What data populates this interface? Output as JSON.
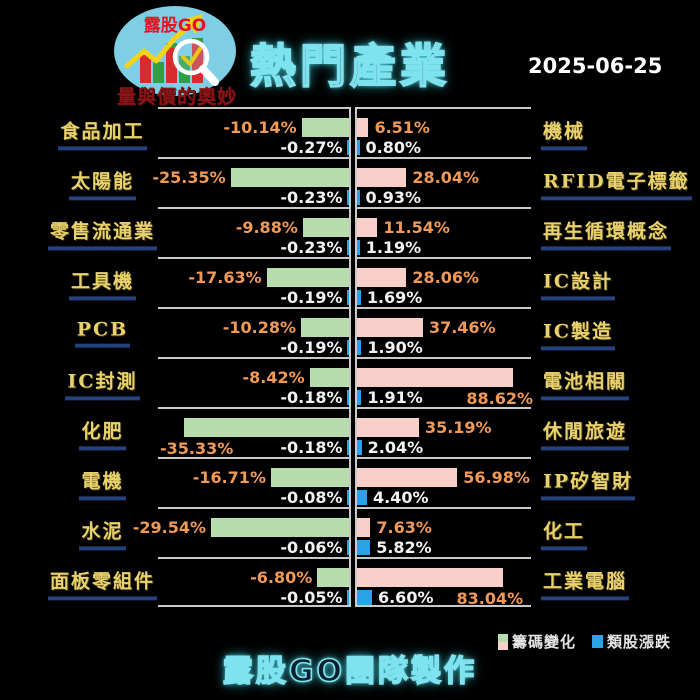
{
  "header": {
    "logo": {
      "brand": "露股GO",
      "tagline": "量與價的奧妙"
    },
    "title": "熱門產業",
    "date": "2025-06-25"
  },
  "footer": {
    "credit": "露股GO團隊製作"
  },
  "colors": {
    "background": "#000000",
    "chip_negative_bar": "#b7dcae",
    "chip_positive_bar": "#f9cfc9",
    "sector_bar": "#29a4e9",
    "chip_value_text": "#f19a57",
    "sector_value_text": "#f2f2f2",
    "category_text": "#e9d26d",
    "category_underline": "#25427e",
    "grid_line": "#c9c9c9",
    "title_glow": "#4fdcec",
    "date_text": "#ffffff",
    "legend_text": "#e5e5e5",
    "logo_circle": "#7ecfe6",
    "logo_brand_red": "#e31324",
    "tagline_red": "#8c1518"
  },
  "chart_data": {
    "type": "bar",
    "orientation": "horizontal-diverging",
    "title": "熱門產業",
    "date": "2025-06-25",
    "grid": "row-separators",
    "legend_position": "bottom-right",
    "legend": [
      {
        "label": "籌碼變化",
        "colors": [
          "#b7dcae",
          "#f9cfc9"
        ]
      },
      {
        "label": "類股漲跌",
        "color": "#29a4e9"
      }
    ],
    "series_names": [
      "籌碼變化",
      "類股漲跌"
    ],
    "left_rows": [
      {
        "category": "食品加工",
        "chip_change_pct": -10.14,
        "chip_text": "-10.14%",
        "sector_change_pct": -0.27,
        "sector_text": "-0.27%",
        "chip_label_below": false
      },
      {
        "category": "太陽能",
        "chip_change_pct": -25.35,
        "chip_text": "-25.35%",
        "sector_change_pct": -0.23,
        "sector_text": "-0.23%",
        "chip_label_below": false
      },
      {
        "category": "零售流通業",
        "chip_change_pct": -9.88,
        "chip_text": "-9.88%",
        "sector_change_pct": -0.23,
        "sector_text": "-0.23%",
        "chip_label_below": false
      },
      {
        "category": "工具機",
        "chip_change_pct": -17.63,
        "chip_text": "-17.63%",
        "sector_change_pct": -0.19,
        "sector_text": "-0.19%",
        "chip_label_below": false
      },
      {
        "category": "PCB",
        "chip_change_pct": -10.28,
        "chip_text": "-10.28%",
        "sector_change_pct": -0.19,
        "sector_text": "-0.19%",
        "chip_label_below": false
      },
      {
        "category": "IC封測",
        "chip_change_pct": -8.42,
        "chip_text": "-8.42%",
        "sector_change_pct": -0.18,
        "sector_text": "-0.18%",
        "chip_label_below": false
      },
      {
        "category": "化肥",
        "chip_change_pct": -35.33,
        "chip_text": "-35.33%",
        "sector_change_pct": -0.18,
        "sector_text": "-0.18%",
        "chip_label_below": true
      },
      {
        "category": "電機",
        "chip_change_pct": -16.71,
        "chip_text": "-16.71%",
        "sector_change_pct": -0.08,
        "sector_text": "-0.08%",
        "chip_label_below": false
      },
      {
        "category": "水泥",
        "chip_change_pct": -29.54,
        "chip_text": "-29.54%",
        "sector_change_pct": -0.06,
        "sector_text": "-0.06%",
        "chip_label_below": false
      },
      {
        "category": "面板零組件",
        "chip_change_pct": -6.8,
        "chip_text": "-6.80%",
        "sector_change_pct": -0.05,
        "sector_text": "-0.05%",
        "chip_label_below": false
      }
    ],
    "right_rows": [
      {
        "category": "機械",
        "chip_change_pct": 6.51,
        "chip_text": "6.51%",
        "sector_change_pct": 0.8,
        "sector_text": "0.80%",
        "chip_label_below": false
      },
      {
        "category": "RFID電子標籤",
        "chip_change_pct": 28.04,
        "chip_text": "28.04%",
        "sector_change_pct": 0.93,
        "sector_text": "0.93%",
        "chip_label_below": false
      },
      {
        "category": "再生循環概念",
        "chip_change_pct": 11.54,
        "chip_text": "11.54%",
        "sector_change_pct": 1.19,
        "sector_text": "1.19%",
        "chip_label_below": false
      },
      {
        "category": "IC設計",
        "chip_change_pct": 28.06,
        "chip_text": "28.06%",
        "sector_change_pct": 1.69,
        "sector_text": "1.69%",
        "chip_label_below": false
      },
      {
        "category": "IC製造",
        "chip_change_pct": 37.46,
        "chip_text": "37.46%",
        "sector_change_pct": 1.9,
        "sector_text": "1.90%",
        "chip_label_below": false
      },
      {
        "category": "電池相關",
        "chip_change_pct": 88.62,
        "chip_text": "88.62%",
        "sector_change_pct": 1.91,
        "sector_text": "1.91%",
        "chip_label_below": true
      },
      {
        "category": "休閒旅遊",
        "chip_change_pct": 35.19,
        "chip_text": "35.19%",
        "sector_change_pct": 2.04,
        "sector_text": "2.04%",
        "chip_label_below": false
      },
      {
        "category": "IP矽智財",
        "chip_change_pct": 56.98,
        "chip_text": "56.98%",
        "sector_change_pct": 4.4,
        "sector_text": "4.40%",
        "chip_label_below": false
      },
      {
        "category": "化工",
        "chip_change_pct": 7.63,
        "chip_text": "7.63%",
        "sector_change_pct": 5.82,
        "sector_text": "5.82%",
        "chip_label_below": false
      },
      {
        "category": "工業電腦",
        "chip_change_pct": 83.04,
        "chip_text": "83.04%",
        "sector_change_pct": 6.6,
        "sector_text": "6.60%",
        "chip_label_below": true
      }
    ]
  }
}
